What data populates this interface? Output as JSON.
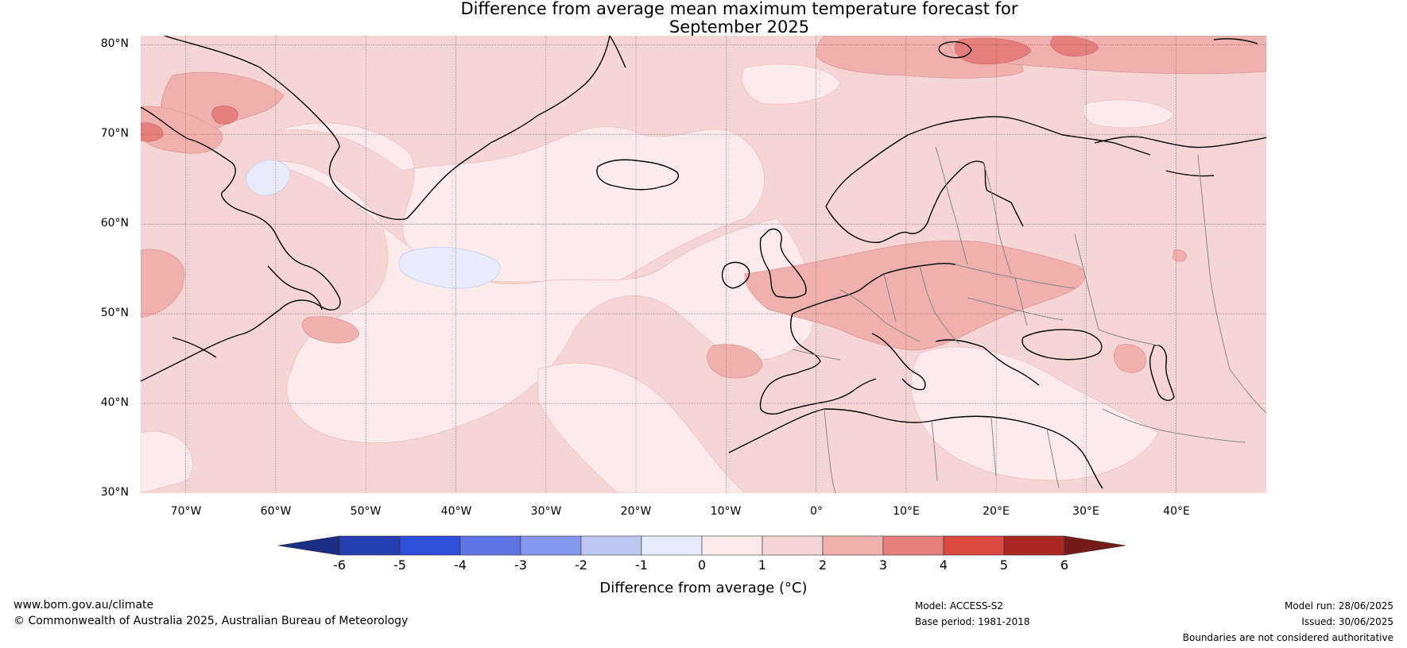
{
  "title": {
    "line1": "Difference from average mean maximum temperature forecast for",
    "line2": "September 2025"
  },
  "map": {
    "projection": "equirectangular",
    "lon_range": [
      -75,
      50
    ],
    "lat_range": [
      30,
      81
    ],
    "latitude_labels": [
      "80°N",
      "70°N",
      "60°N",
      "50°N",
      "40°N",
      "30°N"
    ],
    "longitude_labels": [
      "70°W",
      "60°W",
      "50°W",
      "40°W",
      "30°W",
      "20°W",
      "10°W",
      "0°",
      "10°E",
      "20°E",
      "30°E",
      "40°E"
    ],
    "background_color": "#f6d6d5"
  },
  "colorbar": {
    "ticks": [
      "-6",
      "-5",
      "-4",
      "-3",
      "-2",
      "-1",
      "0",
      "1",
      "2",
      "3",
      "4",
      "5",
      "6"
    ],
    "colors": {
      "below": "#1a2e86",
      "-6_-5": "#253fb0",
      "-5_-4": "#2e4fdc",
      "-4_-3": "#5d74e2",
      "-3_-2": "#8597ea",
      "-2_-1": "#bec7f2",
      "-1_0": "#e8ebfb",
      "0_1": "#fcebea",
      "1_2": "#f6d6d5",
      "2_3": "#efb0ae",
      "3_4": "#e57f7b",
      "4_5": "#db4a40",
      "5_6": "#aa2722",
      "above": "#741c1a"
    },
    "label": "Difference from average (°C)"
  },
  "footer": {
    "website": "www.bom.gov.au/climate",
    "copyright": "© Commonwealth of Australia 2025, Australian Bureau of Meteorology",
    "model": "Model: ACCESS-S2",
    "base_period": "Base period: 1981-2018",
    "model_run": "Model run: 28/06/2025",
    "issued": "Issued: 30/06/2025",
    "disclaimer": "Boundaries are not considered authoritative"
  }
}
